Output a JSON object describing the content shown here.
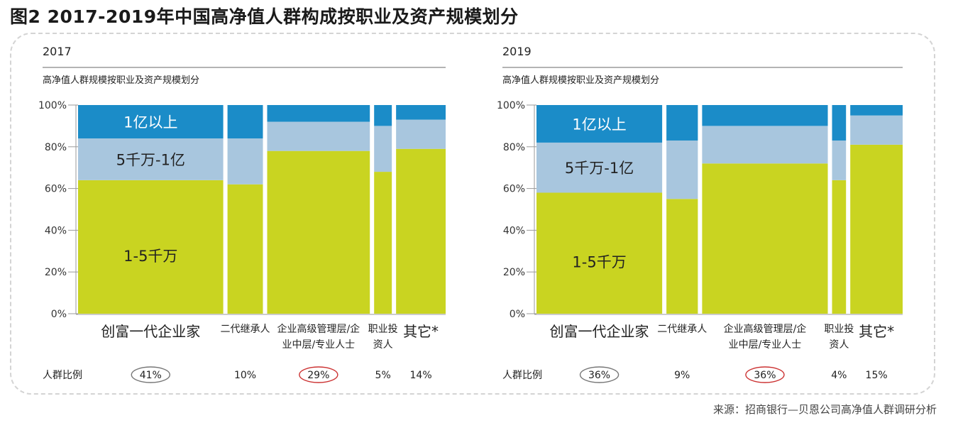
{
  "figure_title": "图2 2017-2019年中国高净值人群构成按职业及资产规模划分",
  "source": "来源：招商银行—贝恩公司高净值人群调研分析",
  "colors": {
    "low": "#c9d421",
    "mid": "#a8c6de",
    "high": "#1b8cc8",
    "axis": "#999999",
    "circle_gray": "#777777",
    "circle_red": "#cc3333"
  },
  "chart_data": [
    {
      "type": "bar",
      "variant": "marimekko",
      "year_label": "2017",
      "subtitle": "高净值人群规模按职业及资产规模划分",
      "y_ticks": [
        "100%",
        "80%",
        "60%",
        "40%",
        "20%",
        "0%"
      ],
      "ylim": [
        0,
        100
      ],
      "categories": [
        "创富一代企业家",
        "二代继承人",
        "企业高级管理层/企业中层/专业人士",
        "职业投资人",
        "其它*"
      ],
      "category_label_lines": [
        [
          "创富一代企业家"
        ],
        [
          "二代继承人"
        ],
        [
          "企业高级管理层/企",
          "业中层/专业人士"
        ],
        [
          "职业投",
          "资人"
        ],
        [
          "其它*"
        ]
      ],
      "share_label": "人群比例",
      "shares": [
        41,
        10,
        29,
        5,
        14
      ],
      "share_texts": [
        "41%",
        "10%",
        "29%",
        "5%",
        "14%"
      ],
      "circled": [
        "gray",
        "",
        "red",
        "",
        ""
      ],
      "series": [
        {
          "name": "1-5千万",
          "values": [
            64,
            62,
            78,
            68,
            79
          ]
        },
        {
          "name": "5千万-1亿",
          "values": [
            20,
            22,
            14,
            22,
            14
          ]
        },
        {
          "name": "1亿以上",
          "values": [
            16,
            16,
            8,
            10,
            7
          ]
        }
      ],
      "segment_labels": [
        "1-5千万",
        "5千万-1亿",
        "1亿以上"
      ]
    },
    {
      "type": "bar",
      "variant": "marimekko",
      "year_label": "2019",
      "subtitle": "高净值人群规模按职业及资产规模划分",
      "y_ticks": [
        "100%",
        "80%",
        "60%",
        "40%",
        "20%",
        "0%"
      ],
      "ylim": [
        0,
        100
      ],
      "categories": [
        "创富一代企业家",
        "二代继承人",
        "企业高级管理层/企业中层/专业人士",
        "职业投资人",
        "其它*"
      ],
      "category_label_lines": [
        [
          "创富一代企业家"
        ],
        [
          "二代继承人"
        ],
        [
          "企业高级管理层/企",
          "业中层/专业人士"
        ],
        [
          "职业投",
          "资人"
        ],
        [
          "其它*"
        ]
      ],
      "share_label": "人群比例",
      "shares": [
        36,
        9,
        36,
        4,
        15
      ],
      "share_texts": [
        "36%",
        "9%",
        "36%",
        "4%",
        "15%"
      ],
      "circled": [
        "gray",
        "",
        "red",
        "",
        ""
      ],
      "series": [
        {
          "name": "1-5千万",
          "values": [
            58,
            55,
            72,
            64,
            81
          ]
        },
        {
          "name": "5千万-1亿",
          "values": [
            24,
            28,
            18,
            19,
            14
          ]
        },
        {
          "name": "1亿以上",
          "values": [
            18,
            17,
            10,
            17,
            5
          ]
        }
      ],
      "segment_labels": [
        "1-5千万",
        "5千万-1亿",
        "1亿以上"
      ]
    }
  ]
}
